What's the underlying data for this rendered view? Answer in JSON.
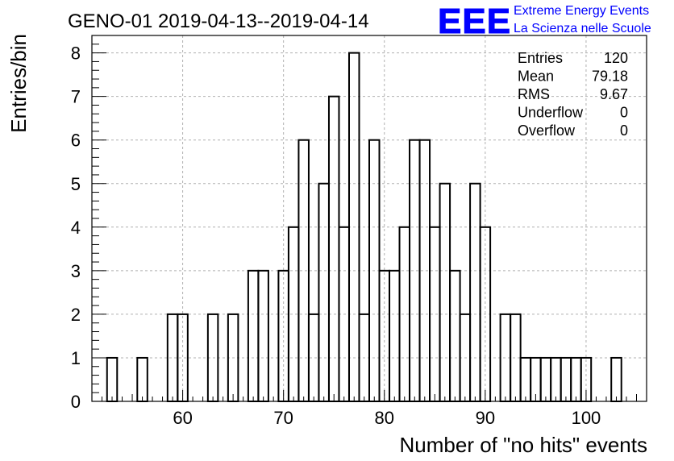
{
  "chart_data": {
    "type": "bar",
    "title": "GENO-01 2019-04-13--2019-04-14",
    "xlabel": "Number of \"no hits\" events",
    "ylabel": "Entries/bin",
    "xlim": [
      51,
      106
    ],
    "ylim": [
      0,
      8.4
    ],
    "x_ticks": [
      60,
      70,
      80,
      90,
      100
    ],
    "y_ticks": [
      0,
      1,
      2,
      3,
      4,
      5,
      6,
      7,
      8
    ],
    "grid": true,
    "bin_width": 1,
    "bins": [
      {
        "x": 53,
        "count": 1
      },
      {
        "x": 56,
        "count": 1
      },
      {
        "x": 59,
        "count": 2
      },
      {
        "x": 60,
        "count": 2
      },
      {
        "x": 63,
        "count": 2
      },
      {
        "x": 65,
        "count": 2
      },
      {
        "x": 67,
        "count": 3
      },
      {
        "x": 68,
        "count": 3
      },
      {
        "x": 70,
        "count": 3
      },
      {
        "x": 71,
        "count": 4
      },
      {
        "x": 72,
        "count": 6
      },
      {
        "x": 73,
        "count": 2
      },
      {
        "x": 74,
        "count": 5
      },
      {
        "x": 75,
        "count": 7
      },
      {
        "x": 76,
        "count": 4
      },
      {
        "x": 77,
        "count": 8
      },
      {
        "x": 78,
        "count": 2
      },
      {
        "x": 79,
        "count": 6
      },
      {
        "x": 80,
        "count": 3
      },
      {
        "x": 81,
        "count": 3
      },
      {
        "x": 82,
        "count": 4
      },
      {
        "x": 83,
        "count": 6
      },
      {
        "x": 84,
        "count": 6
      },
      {
        "x": 85,
        "count": 4
      },
      {
        "x": 86,
        "count": 5
      },
      {
        "x": 87,
        "count": 3
      },
      {
        "x": 88,
        "count": 2
      },
      {
        "x": 89,
        "count": 5
      },
      {
        "x": 90,
        "count": 4
      },
      {
        "x": 92,
        "count": 2
      },
      {
        "x": 93,
        "count": 2
      },
      {
        "x": 94,
        "count": 1
      },
      {
        "x": 95,
        "count": 1
      },
      {
        "x": 96,
        "count": 1
      },
      {
        "x": 97,
        "count": 1
      },
      {
        "x": 98,
        "count": 1
      },
      {
        "x": 99,
        "count": 1
      },
      {
        "x": 100,
        "count": 1
      },
      {
        "x": 103,
        "count": 1
      }
    ],
    "stats": [
      {
        "label": "Entries",
        "value": "120"
      },
      {
        "label": "Mean",
        "value": "79.18"
      },
      {
        "label": "RMS",
        "value": "9.67"
      },
      {
        "label": "Underflow",
        "value": "0"
      },
      {
        "label": "Overflow",
        "value": "0"
      }
    ]
  },
  "logo": {
    "letters": "EEE",
    "line1": "Extreme Energy Events",
    "line2": "La Scienza nelle Scuole",
    "color": "#0000ff"
  }
}
